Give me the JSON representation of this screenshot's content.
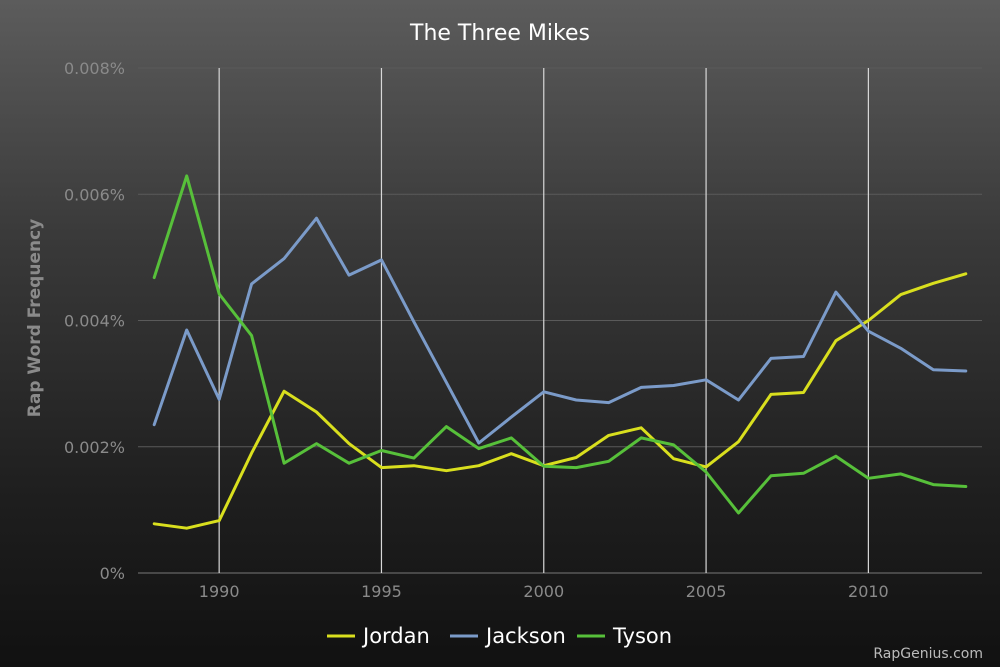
{
  "chart_data": {
    "type": "line",
    "title": "The Three Mikes",
    "xlabel": "",
    "ylabel": "Rap Word Frequency",
    "x": [
      1988,
      1989,
      1990,
      1991,
      1992,
      1993,
      1994,
      1995,
      1996,
      1997,
      1998,
      1999,
      2000,
      2001,
      2002,
      2003,
      2004,
      2005,
      2006,
      2007,
      2008,
      2009,
      2010,
      2011,
      2012,
      2013
    ],
    "xlim": [
      1987.5,
      2013.5
    ],
    "ylim": [
      0,
      0.008
    ],
    "x_ticks": [
      {
        "value": 1990,
        "label": "1990"
      },
      {
        "value": 1995,
        "label": "1995"
      },
      {
        "value": 2000,
        "label": "2000"
      },
      {
        "value": 2005,
        "label": "2005"
      },
      {
        "value": 2010,
        "label": "2010"
      }
    ],
    "y_ticks": [
      {
        "value": 0,
        "label": "0%"
      },
      {
        "value": 0.002,
        "label": "0.002%"
      },
      {
        "value": 0.004,
        "label": "0.004%"
      },
      {
        "value": 0.006,
        "label": "0.006%"
      },
      {
        "value": 0.008,
        "label": "0.008%"
      }
    ],
    "grid": {
      "x": true,
      "y": true
    },
    "legend_position": "bottom-center",
    "series": [
      {
        "name": "Jordan",
        "color": "#d9df1e",
        "values": [
          0.00078,
          0.00071,
          0.00083,
          0.0019,
          0.00288,
          0.00255,
          0.00205,
          0.00167,
          0.0017,
          0.00162,
          0.0017,
          0.00189,
          0.0017,
          0.00183,
          0.00218,
          0.0023,
          0.00181,
          0.00168,
          0.00208,
          0.00283,
          0.00286,
          0.00368,
          0.004,
          0.00441,
          0.00459,
          0.00474
        ]
      },
      {
        "name": "Jackson",
        "color": "#7b9bc9",
        "values": [
          0.00235,
          0.00385,
          0.00275,
          0.00458,
          0.00498,
          0.00562,
          0.00472,
          0.00496,
          0.00398,
          0.00302,
          0.00206,
          0.00247,
          0.00287,
          0.00274,
          0.0027,
          0.00294,
          0.00297,
          0.00306,
          0.00274,
          0.0034,
          0.00343,
          0.00445,
          0.00383,
          0.00356,
          0.00322,
          0.0032
        ]
      },
      {
        "name": "Tyson",
        "color": "#57c03a",
        "values": [
          0.00468,
          0.00629,
          0.00442,
          0.00376,
          0.00174,
          0.00205,
          0.00174,
          0.00194,
          0.00182,
          0.00232,
          0.00197,
          0.00214,
          0.00169,
          0.00167,
          0.00177,
          0.00214,
          0.00203,
          0.0016,
          0.00095,
          0.00154,
          0.00158,
          0.00185,
          0.0015,
          0.00157,
          0.0014,
          0.00137
        ]
      }
    ]
  },
  "credit": "RapGenius.com"
}
